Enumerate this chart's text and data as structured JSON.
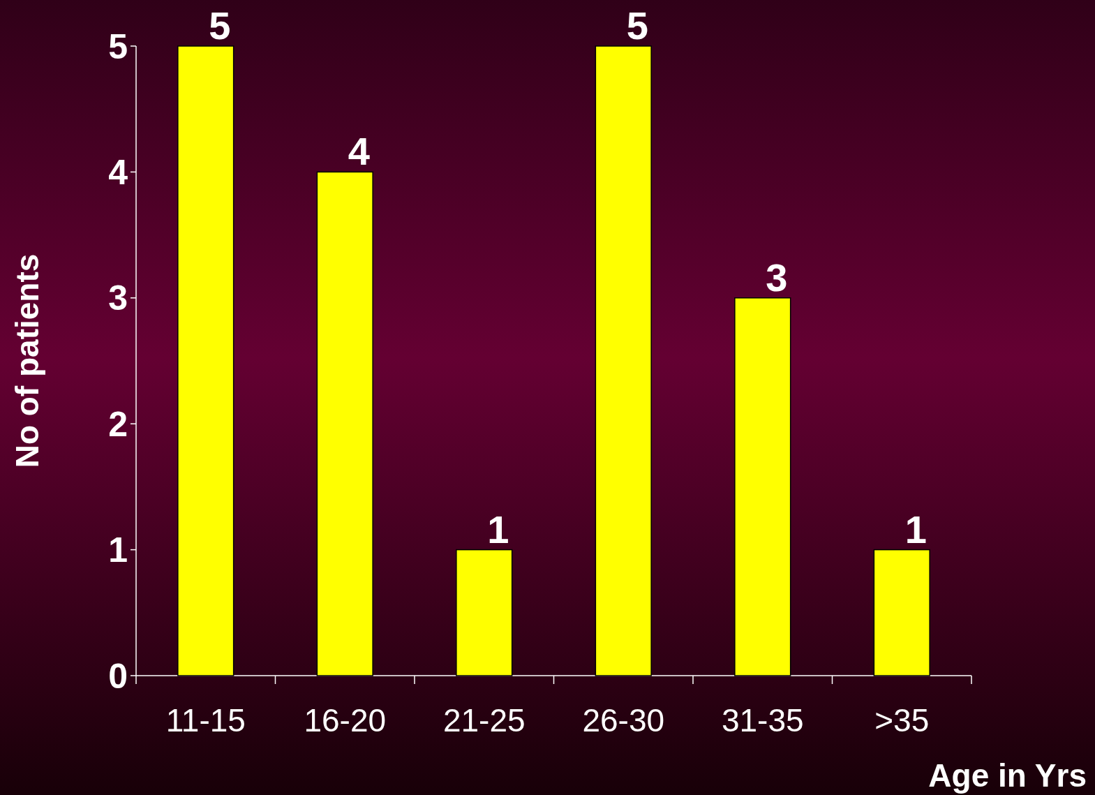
{
  "chart_data": {
    "type": "bar",
    "xlabel": "Age in Yrs",
    "ylabel": "No of patients",
    "categories": [
      "11-15",
      "16-20",
      "21-25",
      "26-30",
      "31-35",
      ">35"
    ],
    "values": [
      5,
      4,
      1,
      5,
      3,
      1
    ],
    "color": "#ffff00",
    "ylim": [
      0,
      5
    ],
    "yticks": [
      0,
      1,
      2,
      3,
      4,
      5
    ],
    "data_labels": true
  }
}
